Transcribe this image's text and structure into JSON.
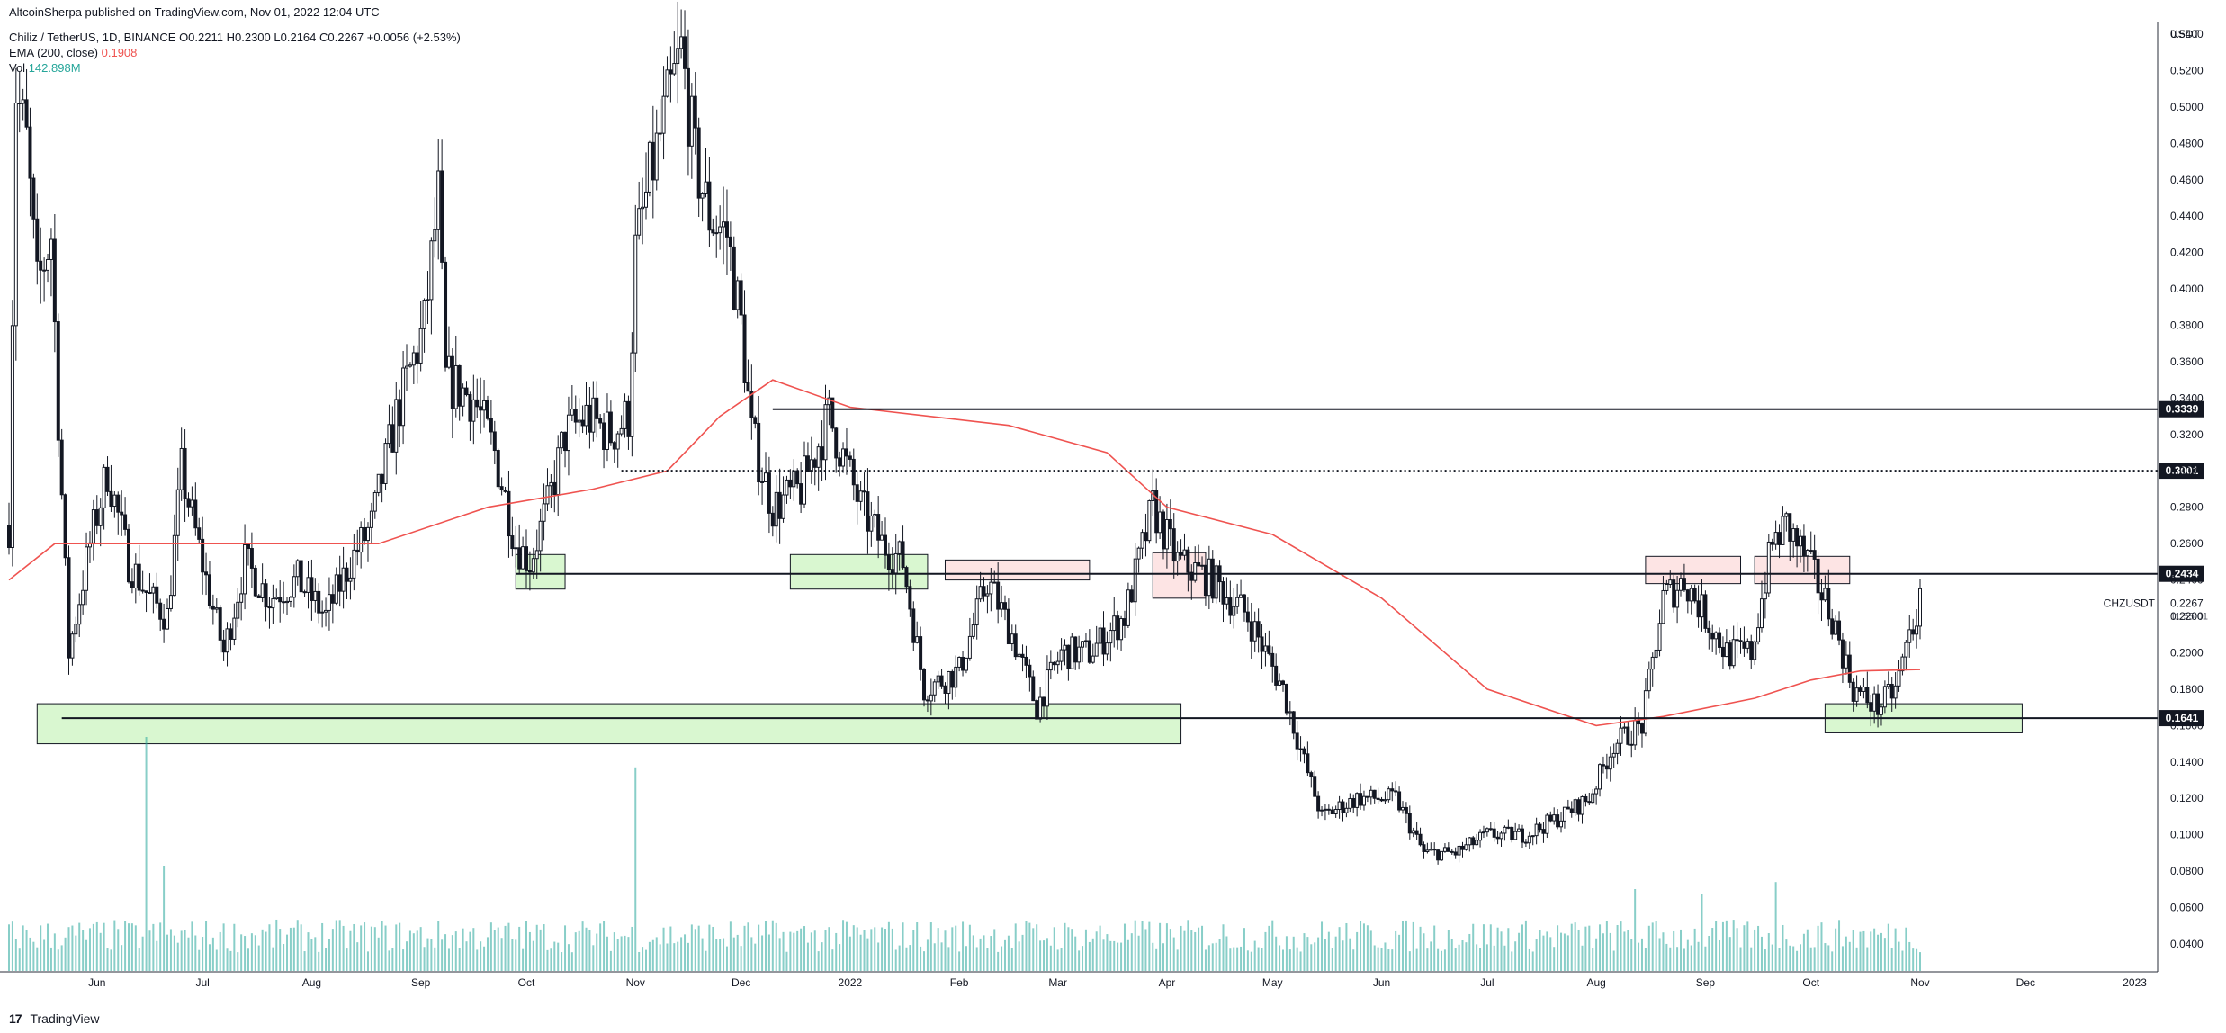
{
  "header": {
    "publisher": "AltcoinSherpa published on TradingView.com, Nov 01, 2022 12:04 UTC",
    "symbol_desc": "Chiliz / TetherUS, 1D, BINANCE",
    "ohlc": {
      "o": "O0.2211",
      "h": "H0.2300",
      "l": "L0.2164",
      "c": "C0.2267",
      "chg": "+0.0056 (+2.53%)"
    },
    "ema_label": "EMA (200, close)",
    "ema_value": "0.1908",
    "vol_label": "Vol",
    "vol_value": "142.898M"
  },
  "footer": {
    "logo": "17",
    "brand": "TradingView"
  },
  "colors": {
    "candle": "#131722",
    "ema": "#ef5350",
    "volume": "#26a69a",
    "support_box": "#d9f7d0",
    "resistance_box": "#fde4e4",
    "box_border": "#131722"
  },
  "chart_data": {
    "type": "candlestick",
    "symbol": "CHZUSDT",
    "y_unit": "USDT",
    "ylim": [
      0.02,
      0.55
    ],
    "y_ticks": [
      "0.5400",
      "0.5200",
      "0.5000",
      "0.4800",
      "0.4600",
      "0.4400",
      "0.4200",
      "0.4000",
      "0.3800",
      "0.3600",
      "0.3400",
      "0.3200",
      "0.3000",
      "0.2800",
      "0.2600",
      "0.2400",
      "0.2200",
      "0.2000",
      "0.1800",
      "0.1600",
      "0.1400",
      "0.1200",
      "0.1000",
      "0.0800",
      "0.0600",
      "0.0400"
    ],
    "x_labels": [
      {
        "label": "Jun",
        "date": "2021-06-01"
      },
      {
        "label": "Jul",
        "date": "2021-07-01"
      },
      {
        "label": "Aug",
        "date": "2021-08-01"
      },
      {
        "label": "Sep",
        "date": "2021-09-01"
      },
      {
        "label": "Oct",
        "date": "2021-10-01"
      },
      {
        "label": "Nov",
        "date": "2021-11-01"
      },
      {
        "label": "Dec",
        "date": "2021-12-01"
      },
      {
        "label": "2022",
        "date": "2022-01-01"
      },
      {
        "label": "Feb",
        "date": "2022-02-01"
      },
      {
        "label": "Mar",
        "date": "2022-03-01"
      },
      {
        "label": "Apr",
        "date": "2022-04-01"
      },
      {
        "label": "May",
        "date": "2022-05-01"
      },
      {
        "label": "Jun",
        "date": "2022-06-01"
      },
      {
        "label": "Jul",
        "date": "2022-07-01"
      },
      {
        "label": "Aug",
        "date": "2022-08-01"
      },
      {
        "label": "Sep",
        "date": "2022-09-01"
      },
      {
        "label": "Oct",
        "date": "2022-10-01"
      },
      {
        "label": "Nov",
        "date": "2022-11-01"
      },
      {
        "label": "Dec",
        "date": "2022-12-01"
      },
      {
        "label": "2023",
        "date": "2023-01-01"
      }
    ],
    "x_range": [
      "2021-05-07",
      "2023-01-12"
    ],
    "price_path": [
      [
        "2021-05-07",
        0.27
      ],
      [
        "2021-05-09",
        0.51
      ],
      [
        "2021-05-12",
        0.48
      ],
      [
        "2021-05-15",
        0.4
      ],
      [
        "2021-05-19",
        0.43
      ],
      [
        "2021-05-21",
        0.33
      ],
      [
        "2021-05-24",
        0.2
      ],
      [
        "2021-05-30",
        0.26
      ],
      [
        "2021-06-04",
        0.3
      ],
      [
        "2021-06-10",
        0.25
      ],
      [
        "2021-06-16",
        0.23
      ],
      [
        "2021-06-21",
        0.22
      ],
      [
        "2021-06-25",
        0.3
      ],
      [
        "2021-07-02",
        0.24
      ],
      [
        "2021-07-07",
        0.2
      ],
      [
        "2021-07-13",
        0.25
      ],
      [
        "2021-07-20",
        0.23
      ],
      [
        "2021-07-28",
        0.24
      ],
      [
        "2021-08-05",
        0.22
      ],
      [
        "2021-08-12",
        0.25
      ],
      [
        "2021-08-18",
        0.27
      ],
      [
        "2021-08-25",
        0.33
      ],
      [
        "2021-09-02",
        0.38
      ],
      [
        "2021-09-06",
        0.45
      ],
      [
        "2021-09-08",
        0.35
      ],
      [
        "2021-09-16",
        0.34
      ],
      [
        "2021-09-22",
        0.31
      ],
      [
        "2021-09-28",
        0.26
      ],
      [
        "2021-10-02",
        0.25
      ],
      [
        "2021-10-07",
        0.28
      ],
      [
        "2021-10-12",
        0.32
      ],
      [
        "2021-10-18",
        0.33
      ],
      [
        "2021-10-25",
        0.32
      ],
      [
        "2021-10-30",
        0.33
      ],
      [
        "2021-11-01",
        0.42
      ],
      [
        "2021-11-05",
        0.46
      ],
      [
        "2021-11-10",
        0.5
      ],
      [
        "2021-11-14",
        0.53
      ],
      [
        "2021-11-18",
        0.47
      ],
      [
        "2021-11-22",
        0.44
      ],
      [
        "2021-11-27",
        0.43
      ],
      [
        "2021-12-01",
        0.38
      ],
      [
        "2021-12-04",
        0.32
      ],
      [
        "2021-12-10",
        0.28
      ],
      [
        "2021-12-18",
        0.29
      ],
      [
        "2021-12-26",
        0.33
      ],
      [
        "2022-01-04",
        0.28
      ],
      [
        "2022-01-10",
        0.26
      ],
      [
        "2022-01-16",
        0.25
      ],
      [
        "2022-01-22",
        0.18
      ],
      [
        "2022-02-01",
        0.19
      ],
      [
        "2022-02-09",
        0.24
      ],
      [
        "2022-02-16",
        0.21
      ],
      [
        "2022-02-23",
        0.17
      ],
      [
        "2022-03-02",
        0.2
      ],
      [
        "2022-03-10",
        0.2
      ],
      [
        "2022-03-20",
        0.22
      ],
      [
        "2022-03-28",
        0.28
      ],
      [
        "2022-04-04",
        0.25
      ],
      [
        "2022-04-14",
        0.24
      ],
      [
        "2022-04-24",
        0.22
      ],
      [
        "2022-05-04",
        0.18
      ],
      [
        "2022-05-10",
        0.14
      ],
      [
        "2022-05-15",
        0.11
      ],
      [
        "2022-05-25",
        0.12
      ],
      [
        "2022-06-05",
        0.12
      ],
      [
        "2022-06-13",
        0.09
      ],
      [
        "2022-06-22",
        0.09
      ],
      [
        "2022-07-01",
        0.1
      ],
      [
        "2022-07-12",
        0.1
      ],
      [
        "2022-07-22",
        0.11
      ],
      [
        "2022-07-30",
        0.12
      ],
      [
        "2022-08-06",
        0.15
      ],
      [
        "2022-08-14",
        0.16
      ],
      [
        "2022-08-20",
        0.23
      ],
      [
        "2022-08-26",
        0.24
      ],
      [
        "2022-09-01",
        0.22
      ],
      [
        "2022-09-07",
        0.2
      ],
      [
        "2022-09-14",
        0.2
      ],
      [
        "2022-09-20",
        0.26
      ],
      [
        "2022-09-24",
        0.27
      ],
      [
        "2022-09-30",
        0.25
      ],
      [
        "2022-10-07",
        0.22
      ],
      [
        "2022-10-13",
        0.18
      ],
      [
        "2022-10-20",
        0.17
      ],
      [
        "2022-10-25",
        0.18
      ],
      [
        "2022-10-29",
        0.21
      ],
      [
        "2022-11-01",
        0.2267
      ]
    ],
    "ema200_path": [
      [
        "2021-05-07",
        0.24
      ],
      [
        "2021-05-20",
        0.26
      ],
      [
        "2021-07-15",
        0.26
      ],
      [
        "2021-08-20",
        0.26
      ],
      [
        "2021-09-20",
        0.28
      ],
      [
        "2021-10-20",
        0.29
      ],
      [
        "2021-11-10",
        0.3
      ],
      [
        "2021-11-25",
        0.33
      ],
      [
        "2021-12-10",
        0.35
      ],
      [
        "2022-01-01",
        0.335
      ],
      [
        "2022-02-15",
        0.325
      ],
      [
        "2022-03-15",
        0.31
      ],
      [
        "2022-04-01",
        0.28
      ],
      [
        "2022-05-01",
        0.265
      ],
      [
        "2022-06-01",
        0.23
      ],
      [
        "2022-07-01",
        0.18
      ],
      [
        "2022-08-01",
        0.16
      ],
      [
        "2022-08-20",
        0.165
      ],
      [
        "2022-09-15",
        0.175
      ],
      [
        "2022-10-01",
        0.185
      ],
      [
        "2022-10-15",
        0.19
      ],
      [
        "2022-11-01",
        0.1908
      ]
    ],
    "levels": [
      {
        "value": 0.3339,
        "label": "0.3339",
        "style": "solid",
        "start": "2021-12-10"
      },
      {
        "value": 0.3001,
        "label": "0.3001",
        "style": "dotted",
        "start": "2021-10-28"
      },
      {
        "value": 0.2434,
        "label": "0.2434",
        "style": "solid",
        "start": "2021-09-28"
      },
      {
        "value": 0.1641,
        "label": "0.1641",
        "style": "solid",
        "start": "2021-05-22"
      }
    ],
    "zones": [
      {
        "kind": "support",
        "x0": "2021-05-15",
        "x1": "2022-04-05",
        "y0": 0.15,
        "y1": 0.172
      },
      {
        "kind": "support",
        "x0": "2021-09-28",
        "x1": "2021-10-12",
        "y0": 0.235,
        "y1": 0.254
      },
      {
        "kind": "support",
        "x0": "2021-12-15",
        "x1": "2022-01-23",
        "y0": 0.235,
        "y1": 0.254
      },
      {
        "kind": "support",
        "x0": "2022-10-05",
        "x1": "2022-11-30",
        "y0": 0.156,
        "y1": 0.172
      },
      {
        "kind": "resistance",
        "x0": "2022-01-28",
        "x1": "2022-03-10",
        "y0": 0.24,
        "y1": 0.251
      },
      {
        "kind": "resistance",
        "x0": "2022-03-28",
        "x1": "2022-04-12",
        "y0": 0.23,
        "y1": 0.255
      },
      {
        "kind": "resistance",
        "x0": "2022-08-15",
        "x1": "2022-09-11",
        "y0": 0.238,
        "y1": 0.253
      },
      {
        "kind": "resistance",
        "x0": "2022-09-15",
        "x1": "2022-10-12",
        "y0": 0.238,
        "y1": 0.253
      }
    ],
    "volume_spikes": [
      {
        "date": "2021-06-15",
        "value": 1.0
      },
      {
        "date": "2021-11-01",
        "value": 0.87
      },
      {
        "date": "2021-06-20",
        "value": 0.45
      },
      {
        "date": "2022-08-12",
        "value": 0.35
      },
      {
        "date": "2022-09-21",
        "value": 0.38
      },
      {
        "date": "2022-08-31",
        "value": 0.33
      }
    ],
    "last_price": {
      "symbol": "CHZUSDT",
      "value": "0.2267",
      "countdown": "11:55:01"
    }
  }
}
